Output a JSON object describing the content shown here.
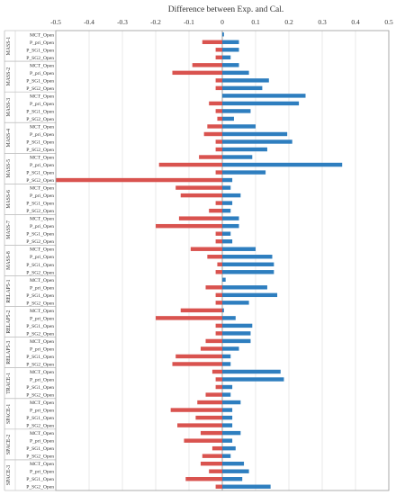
{
  "chart_data": {
    "type": "bar",
    "orientation": "horizontal",
    "title": "Difference between Exp. and Cal.",
    "xlabel": "",
    "ylabel": "",
    "xlim": [
      -0.5,
      0.5
    ],
    "x_ticks": [
      -0.5,
      -0.4,
      -0.3,
      -0.2,
      -0.1,
      0,
      0.1,
      0.2,
      0.3,
      0.4,
      0.5
    ],
    "x_tick_labels": [
      "-0.5",
      "-0.4",
      "-0.3",
      "-0.2",
      "-0.1",
      "0",
      "0.1",
      "0.2",
      "0.3",
      "0.4",
      "0.5"
    ],
    "x_axis_position": "top",
    "grid": "vertical",
    "legend": "none",
    "colors": {
      "negative": "#d9534f",
      "positive": "#2e7ebf"
    },
    "groups": [
      {
        "name": "MASS-1",
        "rows": [
          {
            "label": "MCT_Open",
            "neg": 0,
            "pos": 0.005
          },
          {
            "label": "P_pri_Open",
            "neg": -0.06,
            "pos": 0.05
          },
          {
            "label": "P_SG1_Open",
            "neg": -0.02,
            "pos": 0.05
          },
          {
            "label": "P_SG2_Open",
            "neg": -0.02,
            "pos": 0.025
          }
        ]
      },
      {
        "name": "MASS-2",
        "rows": [
          {
            "label": "MCT_Open",
            "neg": -0.09,
            "pos": 0.05
          },
          {
            "label": "P_pri_Open",
            "neg": -0.15,
            "pos": 0.08
          },
          {
            "label": "P_SG1_Open",
            "neg": -0.02,
            "pos": 0.14
          },
          {
            "label": "P_SG2_Open",
            "neg": -0.02,
            "pos": 0.12
          }
        ]
      },
      {
        "name": "MASS-3",
        "rows": [
          {
            "label": "MCT_Open",
            "neg": 0,
            "pos": 0.25
          },
          {
            "label": "P_pri_Open",
            "neg": -0.04,
            "pos": 0.23
          },
          {
            "label": "P_SG1_Open",
            "neg": -0.02,
            "pos": 0.085
          },
          {
            "label": "P_SG2_Open",
            "neg": -0.015,
            "pos": 0.035
          }
        ]
      },
      {
        "name": "MASS-4",
        "rows": [
          {
            "label": "MCT_Open",
            "neg": -0.045,
            "pos": 0.1
          },
          {
            "label": "P_pri_Open",
            "neg": -0.055,
            "pos": 0.195
          },
          {
            "label": "P_SG1_Open",
            "neg": -0.02,
            "pos": 0.21
          },
          {
            "label": "P_SG2_Open",
            "neg": -0.02,
            "pos": 0.135
          }
        ]
      },
      {
        "name": "MASS-5",
        "rows": [
          {
            "label": "MCT_Open",
            "neg": -0.07,
            "pos": 0.09
          },
          {
            "label": "P_pri_Open",
            "neg": -0.19,
            "pos": 0.36
          },
          {
            "label": "P_SG1_Open",
            "neg": -0.02,
            "pos": 0.13
          },
          {
            "label": "P_SG2_Open",
            "neg": -0.5,
            "pos": 0.03
          }
        ]
      },
      {
        "name": "MASS-6",
        "rows": [
          {
            "label": "MCT_Open",
            "neg": -0.14,
            "pos": 0.025
          },
          {
            "label": "P_pri_Open",
            "neg": -0.125,
            "pos": 0.055
          },
          {
            "label": "P_SG1_Open",
            "neg": -0.02,
            "pos": 0.03
          },
          {
            "label": "P_SG2_Open",
            "neg": -0.04,
            "pos": 0.025
          }
        ]
      },
      {
        "name": "MASS-7",
        "rows": [
          {
            "label": "MCT_Open",
            "neg": -0.13,
            "pos": 0.05
          },
          {
            "label": "P_pri_Open",
            "neg": -0.2,
            "pos": 0.05
          },
          {
            "label": "P_SG1_Open",
            "neg": -0.02,
            "pos": 0.025
          },
          {
            "label": "P_SG2_Open",
            "neg": -0.02,
            "pos": 0.03
          }
        ]
      },
      {
        "name": "MASS-8",
        "rows": [
          {
            "label": "MCT_Open",
            "neg": -0.095,
            "pos": 0.1
          },
          {
            "label": "P_pri_Open",
            "neg": -0.045,
            "pos": 0.15
          },
          {
            "label": "P_SG1_Open",
            "neg": -0.015,
            "pos": 0.155
          },
          {
            "label": "P_SG2_Open",
            "neg": -0.02,
            "pos": 0.155
          }
        ]
      },
      {
        "name": "RELAP5-1",
        "rows": [
          {
            "label": "MCT_Open",
            "neg": 0,
            "pos": 0.01
          },
          {
            "label": "P_pri_Open",
            "neg": -0.05,
            "pos": 0.135
          },
          {
            "label": "P_SG1_Open",
            "neg": -0.02,
            "pos": 0.165
          },
          {
            "label": "P_SG2_Open",
            "neg": -0.02,
            "pos": 0.08
          }
        ]
      },
      {
        "name": "RELAP5-2",
        "rows": [
          {
            "label": "MCT_Open",
            "neg": -0.125,
            "pos": 0.005
          },
          {
            "label": "P_pri_Open",
            "neg": -0.2,
            "pos": 0.04
          },
          {
            "label": "P_SG1_Open",
            "neg": -0.02,
            "pos": 0.09
          },
          {
            "label": "P_SG2_Open",
            "neg": -0.02,
            "pos": 0.085
          }
        ]
      },
      {
        "name": "RELAP5-3",
        "rows": [
          {
            "label": "MCT_Open",
            "neg": -0.05,
            "pos": 0.085
          },
          {
            "label": "P_pri_Open",
            "neg": -0.065,
            "pos": 0.05
          },
          {
            "label": "P_SG1_Open",
            "neg": -0.14,
            "pos": 0.025
          },
          {
            "label": "P_SG2_Open",
            "neg": -0.15,
            "pos": 0.025
          }
        ]
      },
      {
        "name": "TRACE-1",
        "rows": [
          {
            "label": "MCT_Open",
            "neg": -0.03,
            "pos": 0.175
          },
          {
            "label": "P_pri_Open",
            "neg": -0.02,
            "pos": 0.185
          },
          {
            "label": "P_SG1_Open",
            "neg": -0.02,
            "pos": 0.03
          },
          {
            "label": "P_SG2_Open",
            "neg": -0.05,
            "pos": 0.025
          }
        ]
      },
      {
        "name": "SPACE-1",
        "rows": [
          {
            "label": "MCT_Open",
            "neg": -0.075,
            "pos": 0.055
          },
          {
            "label": "P_pri_Open",
            "neg": -0.155,
            "pos": 0.03
          },
          {
            "label": "P_SG1_Open",
            "neg": -0.08,
            "pos": 0.03
          },
          {
            "label": "P_SG2_Open",
            "neg": -0.135,
            "pos": 0.03
          }
        ]
      },
      {
        "name": "SPACE-2",
        "rows": [
          {
            "label": "MCT_Open",
            "neg": -0.065,
            "pos": 0.055
          },
          {
            "label": "P_pri_Open",
            "neg": -0.115,
            "pos": 0.03
          },
          {
            "label": "P_SG1_Open",
            "neg": -0.03,
            "pos": 0.04
          },
          {
            "label": "P_SG2_Open",
            "neg": -0.06,
            "pos": 0.025
          }
        ]
      },
      {
        "name": "SPACE-3",
        "rows": [
          {
            "label": "MCT_Open",
            "neg": -0.065,
            "pos": 0.065
          },
          {
            "label": "P_pri_Open",
            "neg": -0.04,
            "pos": 0.08
          },
          {
            "label": "P_SG1_Open",
            "neg": -0.11,
            "pos": 0.06
          },
          {
            "label": "P_SG2_Open",
            "neg": -0.02,
            "pos": 0.145
          }
        ]
      }
    ]
  }
}
